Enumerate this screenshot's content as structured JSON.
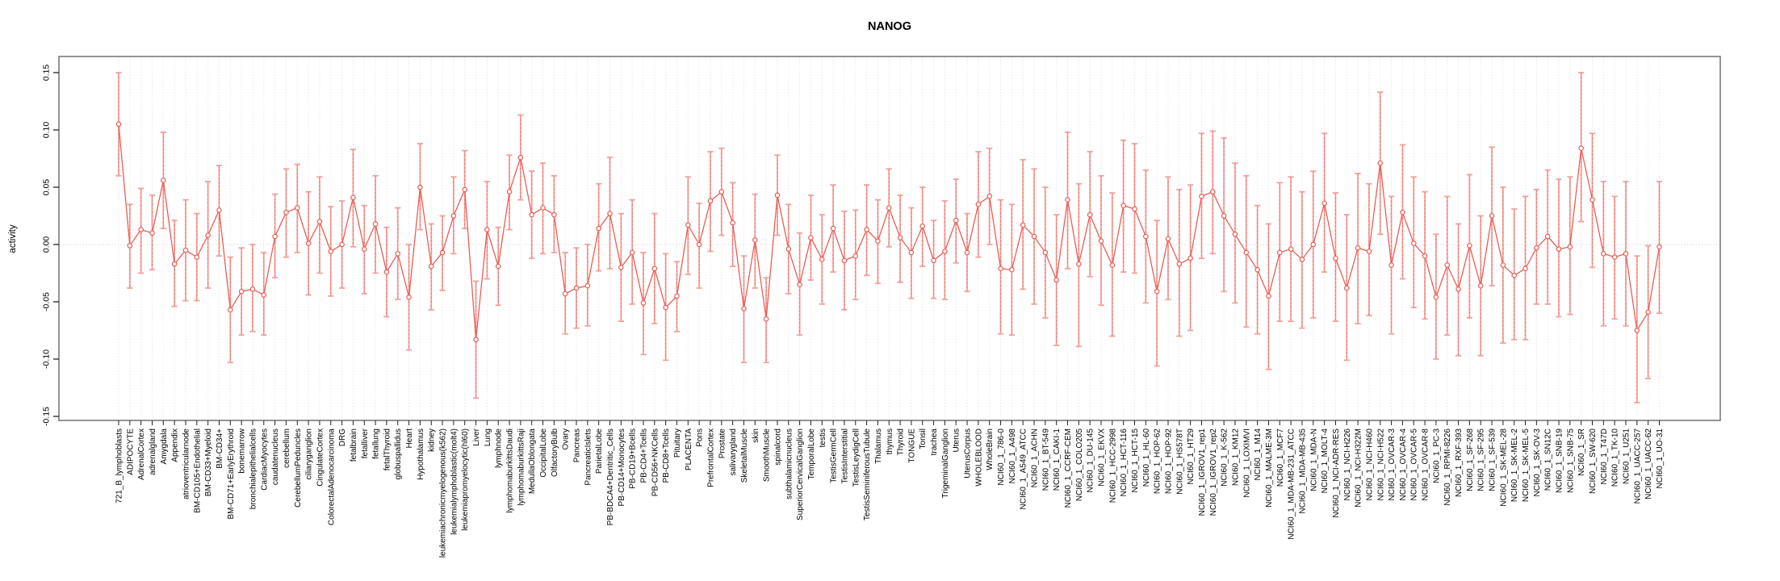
{
  "chart_data": {
    "type": "line",
    "title": "NANOG",
    "ylabel": "activity",
    "xlabel": "",
    "ylim": [
      -0.15,
      0.15
    ],
    "yticks": [
      0.15,
      0.1,
      0.05,
      0.0,
      -0.05,
      -0.1,
      -0.15
    ],
    "ytick_labels": [
      "0.15",
      "0.10",
      "0.05",
      "0.00",
      "-0.05",
      "-0.10",
      "-0.15"
    ],
    "legend": "none",
    "grid_vertical_dashed": true,
    "zero_line_dashed": true,
    "marker": "open-circle",
    "error_bars": true,
    "colors": {
      "line": "#e9584e",
      "error_bar": "#f4a09a",
      "grid": "#dedede",
      "zero_line": "#c9c9c9",
      "box": "#7a7a7a",
      "text": "#000000"
    },
    "categories": [
      "721_B_lymphoblasts",
      "ADIPOCYTE",
      "AdrenalCortex",
      "adrenalgland",
      "Amygdala",
      "Appendix",
      "atrioventricularnode",
      "BM-CD105+Endothelial",
      "BM-CD33+Myeloid",
      "BM-CD34+",
      "BM-CD71+EarlyErythroid",
      "bonemarrow",
      "bronchialepithelialcells",
      "CardiacMyocytes",
      "caudatenucleus",
      "cerebellum",
      "CerebellumPeduncles",
      "ciliaryganglion",
      "CingulateCortex",
      "ColorectalAdenocarcinoma",
      "DRG",
      "fetalbrain",
      "fetalliver",
      "fetallung",
      "fetalThyroid",
      "globuspallidus",
      "Heart",
      "Hypothalamus",
      "kidney",
      "leukemiachronicmyelogenous(k562)",
      "leukemialymphoblastic(molt4)",
      "leukemiapromyelocytic(hl60)",
      "Liver",
      "Lung",
      "lymphnode",
      "lymphomaburkittsDaudi",
      "lymphomaburkittsRaji",
      "MedullaOblongata",
      "OccipitalLobe",
      "OlfactoryBulb",
      "Ovary",
      "Pancreas",
      "PancreaticIslets",
      "ParietalLobe",
      "PB-BDCA4+Dentritic_Cells",
      "PB-CD14+Monocytes",
      "PB-CD19+Bcells",
      "PB-CD4+Tcells",
      "PB-CD56+NKCells",
      "PB-CD8+Tcells",
      "Pituitary",
      "PLACENTA",
      "Pons",
      "PrefrontalCortex",
      "Prostate",
      "salivarygland",
      "SkeletalMuscle",
      "skin",
      "SmoothMuscle",
      "spinalcord",
      "subthalamicnucleus",
      "SuperiorCervicalGanglion",
      "TemporalLobe",
      "testis",
      "TestisGermCell",
      "TestisInterstitial",
      "TestisLeydigCell",
      "TestisSeminiferousTubule",
      "Thalamus",
      "thymus",
      "Thyroid",
      "TONGUE",
      "Tonsil",
      "trachea",
      "TrigeminalGanglion",
      "Uterus",
      "UterusCorpus",
      "WHOLEBLOOD",
      "WholeBrain",
      "NCI60_1_786-0",
      "NCI60_1_A498",
      "NCI60_1_A549_ATCC",
      "NCI60_1_ACHN",
      "NCI60_1_BT-549",
      "NCI60_1_CAKI-1",
      "NCI60_1_CCRF-CEM",
      "NCI60_1_COLO205",
      "NCI60_1_DU-145",
      "NCI60_1_EKVX",
      "NCI60_1_HCC-2998",
      "NCI60_1_HCT-116",
      "NCI60_1_HCT-15",
      "NCI60_1_HL-60",
      "NCI60_1_HOP-62",
      "NCI60_1_HOP-92",
      "NCI60_1_HS578T",
      "NCI60_1_HT29",
      "NCI60_1_IGROV1_rep1",
      "NCI60_1_IGROV1_rep2",
      "NCI60_1_K-562",
      "NCI60_1_KM12",
      "NCI60_1_LOXIMVI",
      "NCI60_1_M14",
      "NCI60_1_MALME-3M",
      "NCI60_1_MCF7",
      "NCI60_1_MDA-MB-231_ATCC",
      "NCI60_1_MDA-MB-435",
      "NCI60_1_MDA-N",
      "NCI60_1_MOLT-4",
      "NCI60_1_NCI-ADR-RES",
      "NCI60_1_NCI-H226",
      "NCI60_1_NCI-H322M",
      "NCI60_1_NCI-H460",
      "NCI60_1_NCI-H522",
      "NCI60_1_OVCAR-3",
      "NCI60_1_OVCAR-4",
      "NCI60_1_OVCAR-5",
      "NCI60_1_OVCAR-8",
      "NCI60_1_PC-3",
      "NCI60_1_RPMI-8226",
      "NCI60_1_RXF-393",
      "NCI60_1_SF-268",
      "NCI60_1_SF-295",
      "NCI60_1_SF-539",
      "NCI60_1_SK-MEL-28",
      "NCI60_1_SK-MEL-2",
      "NCI60_1_SK-MEL-5",
      "NCI60_1_SK-OV-3",
      "NCI60_1_SN12C",
      "NCI60_1_SNB-19",
      "NCI60_1_SNB-75",
      "NCI60_1_SR",
      "NCI60_1_SW-620",
      "NCI60_1_T47D",
      "NCI60_1_TK-10",
      "NCI60_1_U251",
      "NCI60_1_UACC-257",
      "NCI60_1_UACC-62",
      "NCI60_1_UO-31"
    ],
    "values": [
      0.105,
      -0.001,
      0.013,
      0.01,
      0.056,
      -0.017,
      -0.005,
      -0.011,
      0.008,
      0.03,
      -0.057,
      -0.041,
      -0.039,
      -0.044,
      0.007,
      0.028,
      0.032,
      0.001,
      0.02,
      -0.006,
      0.0,
      0.041,
      -0.004,
      0.018,
      -0.024,
      -0.008,
      -0.046,
      0.05,
      -0.019,
      -0.007,
      0.025,
      0.048,
      -0.083,
      0.013,
      -0.019,
      0.046,
      0.076,
      0.026,
      0.032,
      0.026,
      -0.043,
      -0.038,
      -0.036,
      0.014,
      0.027,
      -0.02,
      -0.007,
      -0.051,
      -0.021,
      -0.055,
      -0.045,
      0.017,
      0.0,
      0.038,
      0.046,
      0.019,
      -0.056,
      0.004,
      -0.065,
      0.043,
      -0.004,
      -0.035,
      0.006,
      -0.013,
      0.014,
      -0.014,
      -0.01,
      0.013,
      0.003,
      0.032,
      0.006,
      -0.007,
      0.016,
      -0.014,
      -0.006,
      0.021,
      -0.007,
      0.035,
      0.042,
      -0.021,
      -0.022,
      0.017,
      0.007,
      -0.007,
      -0.031,
      0.039,
      -0.017,
      0.026,
      0.003,
      -0.018,
      0.034,
      0.031,
      0.007,
      -0.041,
      0.005,
      -0.017,
      -0.012,
      0.042,
      0.046,
      0.025,
      0.009,
      -0.007,
      -0.022,
      -0.045,
      -0.007,
      -0.004,
      -0.013,
      0.0,
      0.036,
      -0.012,
      -0.038,
      -0.003,
      -0.006,
      0.071,
      -0.018,
      0.028,
      0.001,
      -0.01,
      -0.046,
      -0.018,
      -0.039,
      -0.001,
      -0.036,
      0.025,
      -0.018,
      -0.027,
      -0.021,
      -0.003,
      0.007,
      -0.004,
      -0.002,
      0.084,
      0.039,
      -0.008,
      -0.011,
      -0.008,
      -0.075,
      -0.059,
      -0.002
    ],
    "err_low": [
      0.06,
      -0.038,
      -0.025,
      -0.022,
      0.014,
      -0.054,
      -0.049,
      -0.049,
      -0.038,
      -0.01,
      -0.103,
      -0.079,
      -0.076,
      -0.079,
      -0.029,
      -0.011,
      -0.007,
      -0.044,
      -0.025,
      -0.045,
      -0.038,
      -0.002,
      -0.043,
      -0.025,
      -0.063,
      -0.048,
      -0.092,
      0.013,
      -0.057,
      -0.04,
      -0.008,
      0.014,
      -0.134,
      -0.03,
      -0.053,
      0.013,
      0.039,
      -0.012,
      -0.008,
      -0.007,
      -0.078,
      -0.073,
      -0.071,
      -0.023,
      -0.021,
      -0.067,
      -0.052,
      -0.096,
      -0.069,
      -0.101,
      -0.076,
      -0.026,
      -0.038,
      -0.006,
      0.008,
      -0.019,
      -0.103,
      -0.038,
      -0.103,
      0.008,
      -0.043,
      -0.079,
      -0.031,
      -0.052,
      -0.024,
      -0.057,
      -0.048,
      -0.027,
      -0.034,
      -0.002,
      -0.033,
      -0.047,
      -0.019,
      -0.047,
      -0.048,
      -0.016,
      -0.041,
      -0.011,
      0.0,
      -0.078,
      -0.079,
      -0.039,
      -0.052,
      -0.064,
      -0.088,
      -0.021,
      -0.089,
      -0.028,
      -0.053,
      -0.08,
      -0.024,
      -0.025,
      -0.051,
      -0.106,
      -0.048,
      -0.08,
      -0.075,
      -0.012,
      -0.008,
      -0.041,
      -0.051,
      -0.072,
      -0.078,
      -0.109,
      -0.067,
      -0.067,
      -0.073,
      -0.064,
      -0.024,
      -0.067,
      -0.101,
      -0.069,
      -0.062,
      0.009,
      -0.078,
      -0.03,
      -0.055,
      -0.065,
      -0.1,
      -0.079,
      -0.097,
      -0.064,
      -0.097,
      -0.036,
      -0.086,
      -0.083,
      -0.083,
      -0.052,
      -0.052,
      -0.063,
      -0.061,
      0.02,
      -0.02,
      -0.071,
      -0.065,
      -0.071,
      -0.138,
      -0.117,
      -0.06
    ],
    "err_high": [
      0.15,
      0.035,
      0.049,
      0.043,
      0.098,
      0.021,
      0.039,
      0.027,
      0.055,
      0.069,
      -0.011,
      -0.003,
      0.0,
      -0.007,
      0.044,
      0.066,
      0.07,
      0.046,
      0.059,
      0.033,
      0.038,
      0.083,
      0.034,
      0.06,
      0.015,
      0.032,
      0.0,
      0.088,
      0.018,
      0.025,
      0.059,
      0.082,
      -0.032,
      0.055,
      0.015,
      0.078,
      0.113,
      0.064,
      0.071,
      0.06,
      -0.007,
      -0.003,
      0.0,
      0.053,
      0.076,
      0.027,
      0.039,
      -0.007,
      0.027,
      -0.008,
      -0.015,
      0.059,
      0.036,
      0.081,
      0.084,
      0.054,
      -0.01,
      0.044,
      -0.029,
      0.078,
      0.035,
      0.01,
      0.043,
      0.026,
      0.052,
      0.029,
      0.03,
      0.052,
      0.039,
      0.066,
      0.043,
      0.032,
      0.05,
      0.021,
      0.038,
      0.057,
      0.027,
      0.081,
      0.084,
      0.039,
      0.035,
      0.074,
      0.066,
      0.05,
      0.026,
      0.098,
      0.053,
      0.081,
      0.06,
      0.045,
      0.091,
      0.088,
      0.065,
      0.021,
      0.059,
      0.048,
      0.052,
      0.097,
      0.099,
      0.093,
      0.071,
      0.06,
      0.034,
      0.018,
      0.054,
      0.059,
      0.046,
      0.064,
      0.097,
      0.045,
      0.026,
      0.062,
      0.053,
      0.133,
      0.042,
      0.087,
      0.059,
      0.046,
      0.009,
      0.042,
      0.018,
      0.061,
      0.025,
      0.085,
      0.05,
      0.031,
      0.042,
      0.048,
      0.065,
      0.057,
      0.059,
      0.15,
      0.097,
      0.055,
      0.042,
      0.055,
      -0.01,
      -0.001,
      0.055
    ]
  }
}
